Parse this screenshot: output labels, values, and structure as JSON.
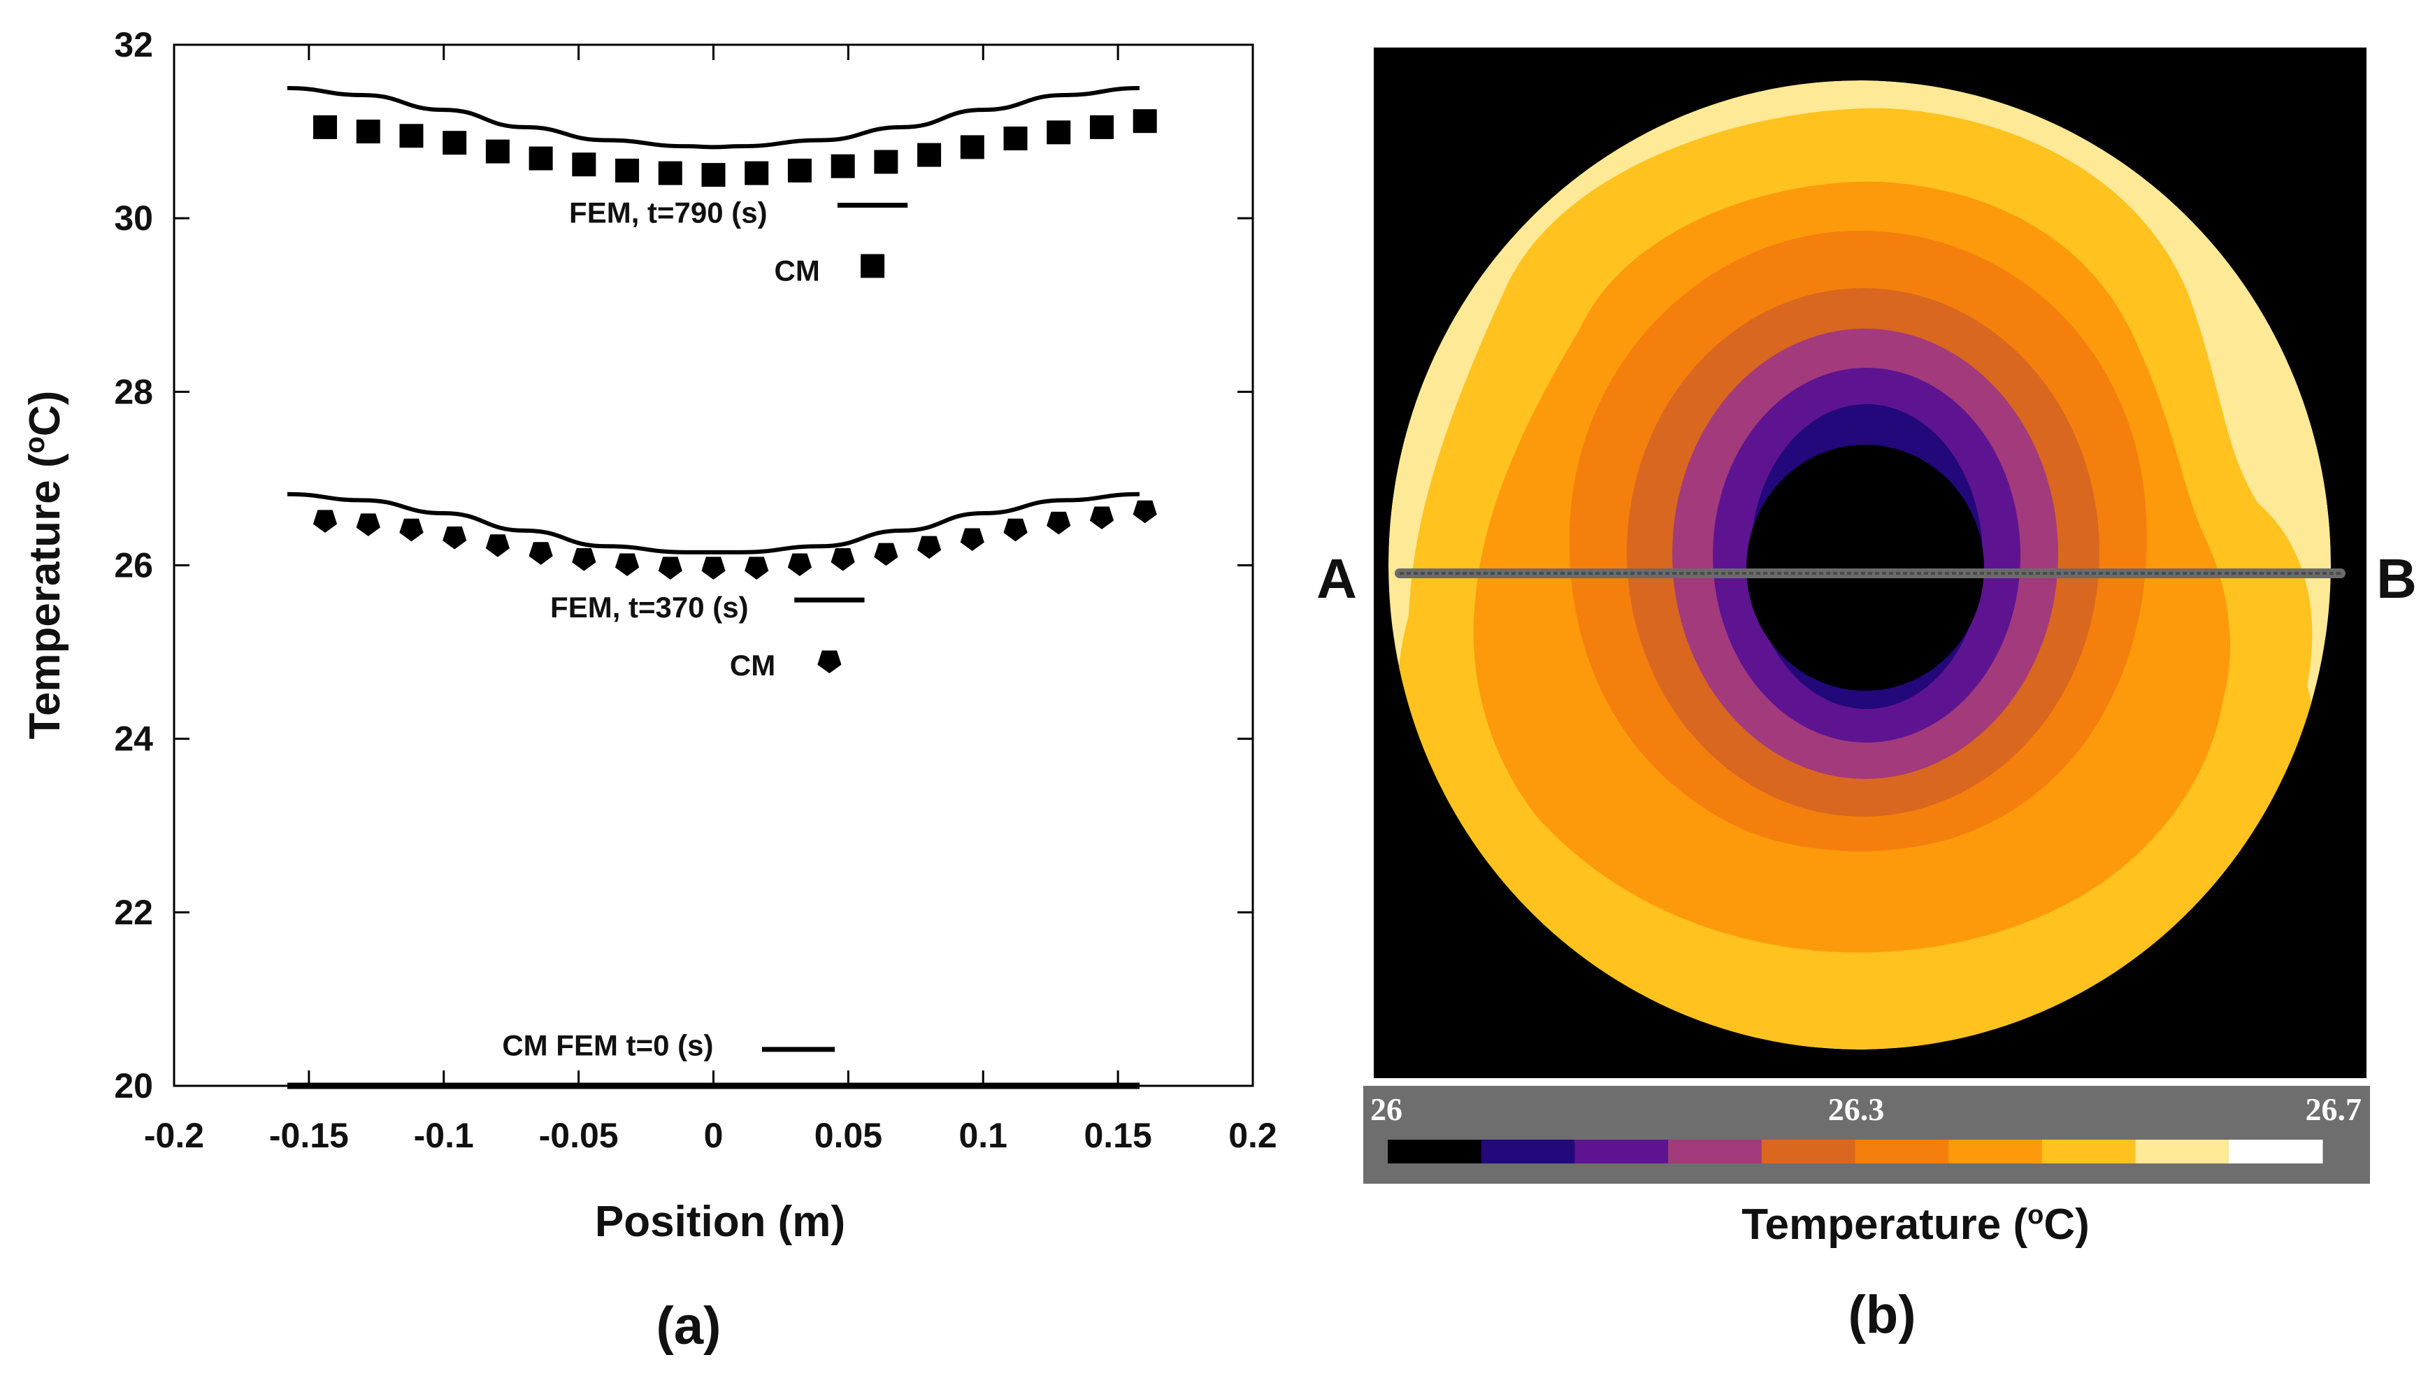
{
  "chart_data": [
    {
      "panel": "(a)",
      "type": "line",
      "xlabel": "Position (m)",
      "ylabel_main": "Temperature (",
      "ylabel_sup": "o",
      "ylabel_end": "C)",
      "xlim": [
        -0.2,
        0.2
      ],
      "ylim": [
        20,
        32
      ],
      "xticks": [
        "-0.2",
        "-0.15",
        "-0.1",
        "-0.05",
        "0",
        "0.05",
        "0.1",
        "0.15",
        "0.2"
      ],
      "xtick_values": [
        -0.2,
        -0.15,
        -0.1,
        -0.05,
        0,
        0.05,
        0.1,
        0.15,
        0.2
      ],
      "yticks": [
        "20",
        "22",
        "24",
        "26",
        "28",
        "30",
        "32"
      ],
      "ytick_values": [
        20,
        22,
        24,
        26,
        28,
        30,
        32
      ],
      "fem_x": [
        -0.158,
        -0.13,
        -0.1,
        -0.07,
        -0.04,
        -0.01,
        0,
        0.01,
        0.04,
        0.07,
        0.1,
        0.13,
        0.158
      ],
      "series": [
        {
          "name": "FEM, t=790 (s)",
          "style": "line",
          "values": [
            31.5,
            31.42,
            31.25,
            31.05,
            30.9,
            30.83,
            30.82,
            30.83,
            30.9,
            31.05,
            31.25,
            31.42,
            31.5
          ]
        },
        {
          "name": "CM t=790",
          "style": "square",
          "x": [
            -0.144,
            -0.128,
            -0.112,
            -0.096,
            -0.08,
            -0.064,
            -0.048,
            -0.032,
            -0.016,
            0,
            0.016,
            0.032,
            0.048,
            0.064,
            0.08,
            0.096,
            0.112,
            0.128,
            0.144,
            0.16
          ],
          "values": [
            31.05,
            31.0,
            30.95,
            30.87,
            30.77,
            30.69,
            30.62,
            30.55,
            30.52,
            30.5,
            30.52,
            30.55,
            30.6,
            30.65,
            30.73,
            30.82,
            30.92,
            30.99,
            31.05,
            31.12
          ]
        },
        {
          "name": "FEM, t=370 (s)",
          "style": "line",
          "values": [
            26.82,
            26.75,
            26.6,
            26.4,
            26.22,
            26.15,
            26.15,
            26.15,
            26.22,
            26.4,
            26.6,
            26.75,
            26.82
          ]
        },
        {
          "name": "CM t=370",
          "style": "pentagon",
          "x": [
            -0.144,
            -0.128,
            -0.112,
            -0.096,
            -0.08,
            -0.064,
            -0.048,
            -0.032,
            -0.016,
            0,
            0.016,
            0.032,
            0.048,
            0.064,
            0.08,
            0.096,
            0.112,
            0.128,
            0.144,
            0.16
          ],
          "values": [
            26.52,
            26.48,
            26.42,
            26.33,
            26.24,
            26.15,
            26.08,
            26.02,
            25.98,
            25.98,
            25.98,
            26.02,
            26.08,
            26.14,
            26.22,
            26.31,
            26.42,
            26.5,
            26.56,
            26.63
          ]
        },
        {
          "name": "FEM t=0",
          "style": "line",
          "values": [
            20.0,
            20.0,
            20.0,
            20.0,
            20.0,
            20.0,
            20.0,
            20.0,
            20.0,
            20.0,
            20.0,
            20.0,
            20.0
          ]
        }
      ],
      "legends": [
        {
          "fem_label": "FEM, t=790 (s)",
          "cm_label": "CM",
          "fem_line_y": 30.15,
          "cm_marker_y": 29.45,
          "line_x": [
            0.046,
            0.072
          ],
          "fem_text_x": 0.02,
          "fem_text_y": 29.95,
          "cm_text_x": 0.0395,
          "cm_text_y": 29.28,
          "marker": "square"
        },
        {
          "fem_label": "FEM, t=370 (s)",
          "cm_label": "CM",
          "fem_line_y": 25.6,
          "cm_marker_y": 24.9,
          "line_x": [
            0.03,
            0.056
          ],
          "fem_text_x": 0.013,
          "fem_text_y": 25.4,
          "cm_text_x": 0.023,
          "cm_text_y": 24.73,
          "marker": "pentagon"
        },
        {
          "fem_label": "CM FEM t=0 (s)",
          "fem_line_y": 20.42,
          "line_x": [
            0.018,
            0.045
          ],
          "fem_text_x": 0.0,
          "fem_text_y": 20.35
        }
      ]
    },
    {
      "panel": "(b)",
      "type": "heatmap",
      "title_main": "Temperature (",
      "title_sup": "o",
      "title_end": "C)",
      "point_labels": [
        "A",
        "B"
      ],
      "colorbar_ticks": [
        "26",
        "26.3",
        "26.7"
      ],
      "colorbar_tick_values": [
        26,
        26.3,
        26.7
      ],
      "colorbar_range": [
        26,
        26.7
      ],
      "colorbar_colors": [
        "#000000",
        "#22087a",
        "#5e1491",
        "#a33a7c",
        "#d9671f",
        "#f57f0d",
        "#fd9a0b",
        "#ffc21f",
        "#fde996",
        "#ffffff"
      ],
      "contour_levels": [
        {
          "level": 10,
          "color": "#fde996"
        },
        {
          "level": 9,
          "color": "#ffc21f"
        },
        {
          "level": 8,
          "color": "#fd9a0b"
        },
        {
          "level": 7,
          "color": "#f57f0d"
        },
        {
          "level": 6,
          "color": "#d9671f"
        },
        {
          "level": 5,
          "color": "#a33a7c"
        },
        {
          "level": 4,
          "color": "#5e1491"
        },
        {
          "level": 3,
          "color": "#22087a"
        },
        {
          "level": 1,
          "color": "#000000"
        }
      ]
    }
  ]
}
